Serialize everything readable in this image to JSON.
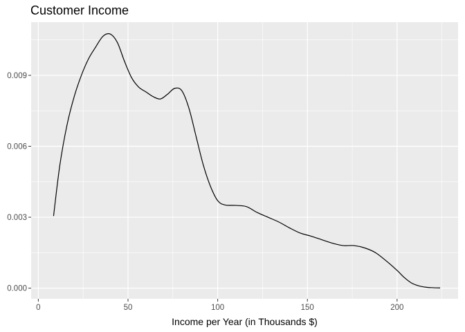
{
  "chart_data": {
    "type": "line",
    "title": "Customer Income",
    "xlabel": "Income per Year (in Thousands $)",
    "ylabel": "",
    "xlim": [
      -4,
      234
    ],
    "ylim": [
      -0.00045,
      0.01125
    ],
    "x_ticks": [
      0,
      50,
      100,
      150,
      200
    ],
    "x_tick_labels": [
      "0",
      "50",
      "100",
      "150",
      "200"
    ],
    "y_ticks": [
      0.0,
      0.003,
      0.006,
      0.009
    ],
    "y_tick_labels": [
      "0.000",
      "0.003",
      "0.006",
      "0.009"
    ],
    "grid": true,
    "legend": "none",
    "colors": {
      "panel": "#ebebeb",
      "grid": "#ffffff",
      "line": "#000000",
      "tick": "#4d4d4d"
    },
    "series": [
      {
        "x": [
          8.5,
          12,
          16,
          20,
          24,
          28,
          32,
          36,
          40,
          44,
          48,
          52,
          56,
          60,
          64,
          68,
          72,
          76,
          80,
          84,
          88,
          92,
          96,
          100,
          104,
          110,
          116,
          122,
          128,
          134,
          140,
          146,
          152,
          158,
          164,
          170,
          176,
          182,
          188,
          194,
          200,
          204,
          208,
          212,
          216,
          220,
          224
        ],
        "y": [
          0.00305,
          0.0052,
          0.0069,
          0.0081,
          0.009,
          0.0097,
          0.0102,
          0.01065,
          0.01075,
          0.0104,
          0.0096,
          0.0089,
          0.0085,
          0.0083,
          0.0081,
          0.008,
          0.0082,
          0.00845,
          0.00835,
          0.0076,
          0.0064,
          0.0052,
          0.0043,
          0.0037,
          0.00352,
          0.0035,
          0.00345,
          0.0032,
          0.003,
          0.0028,
          0.00255,
          0.00233,
          0.0022,
          0.00205,
          0.0019,
          0.0018,
          0.0018,
          0.0017,
          0.0015,
          0.00115,
          0.00075,
          0.00045,
          0.00022,
          0.0001,
          4e-05,
          2e-05,
          1e-05
        ]
      }
    ]
  }
}
